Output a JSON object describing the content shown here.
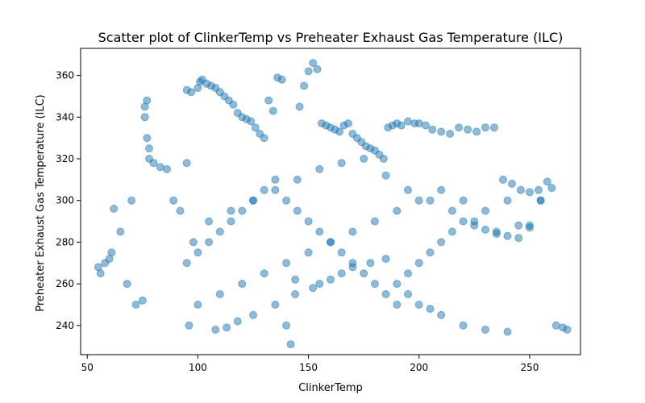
{
  "chart_data": {
    "type": "scatter",
    "title": "Scatter plot of ClinkerTemp vs Preheater Exhaust Gas Temperature (ILC)",
    "xlabel": "ClinkerTemp",
    "ylabel": "Preheater Exhaust Gas Temperature (ILC)",
    "xlim": [
      47,
      273
    ],
    "ylim": [
      226,
      373
    ],
    "xticks": [
      50,
      100,
      150,
      200,
      250
    ],
    "yticks": [
      240,
      260,
      280,
      300,
      320,
      340,
      360
    ],
    "grid": false,
    "marker_color": "#1f77b4",
    "marker_alpha": 0.5,
    "series": [
      {
        "values_note_x_y_pairs": "sampled representative points",
        "x": [
          55,
          56,
          58,
          60,
          61,
          62,
          65,
          68,
          70,
          72,
          75,
          76,
          76,
          77,
          77,
          78,
          78,
          80,
          83,
          86,
          89,
          92,
          95,
          95,
          97,
          98,
          100,
          101,
          102,
          104,
          106,
          108,
          110,
          112,
          114,
          116,
          118,
          120,
          122,
          124,
          126,
          128,
          130,
          132,
          134,
          136,
          138,
          140,
          142,
          144,
          146,
          148,
          150,
          152,
          154,
          156,
          158,
          160,
          162,
          164,
          166,
          168,
          170,
          172,
          174,
          176,
          178,
          180,
          182,
          184,
          186,
          188,
          190,
          192,
          195,
          198,
          200,
          203,
          206,
          210,
          214,
          218,
          222,
          226,
          230,
          234,
          238,
          242,
          246,
          250,
          254,
          258,
          262,
          265,
          267,
          96,
          108,
          113,
          118,
          125,
          135,
          144,
          152,
          155,
          160,
          165,
          170,
          178,
          185,
          190,
          195,
          200,
          205,
          210,
          220,
          230,
          240,
          95,
          100,
          105,
          110,
          115,
          120,
          125,
          130,
          135,
          140,
          145,
          150,
          155,
          160,
          165,
          170,
          175,
          180,
          185,
          190,
          195,
          200,
          205,
          210,
          215,
          220,
          225,
          230,
          235,
          240,
          245,
          250,
          255,
          260,
          100,
          110,
          120,
          130,
          140,
          150,
          160,
          170,
          180,
          190,
          200,
          210,
          220,
          230,
          240,
          250,
          105,
          115,
          125,
          135,
          145,
          155,
          165,
          175,
          185,
          195,
          205,
          215,
          225,
          235,
          245,
          255
        ],
        "y": [
          268,
          265,
          270,
          272,
          275,
          296,
          285,
          260,
          300,
          250,
          252,
          340,
          345,
          348,
          330,
          325,
          320,
          318,
          316,
          315,
          300,
          295,
          318,
          353,
          352,
          280,
          354,
          357,
          358,
          356,
          355,
          354,
          352,
          350,
          348,
          346,
          342,
          340,
          339,
          338,
          335,
          332,
          330,
          348,
          343,
          359,
          358,
          240,
          231,
          262,
          345,
          355,
          362,
          366,
          363,
          337,
          336,
          335,
          334,
          333,
          336,
          337,
          332,
          330,
          328,
          326,
          325,
          324,
          322,
          320,
          335,
          336,
          337,
          336,
          338,
          337,
          337,
          336,
          334,
          333,
          332,
          335,
          334,
          333,
          335,
          335,
          310,
          308,
          305,
          304,
          305,
          309,
          240,
          239,
          238,
          240,
          238,
          239,
          242,
          245,
          250,
          255,
          258,
          260,
          262,
          265,
          268,
          270,
          272,
          260,
          255,
          250,
          248,
          245,
          240,
          238,
          237,
          270,
          275,
          280,
          285,
          290,
          295,
          300,
          305,
          310,
          300,
          295,
          290,
          285,
          280,
          275,
          270,
          265,
          260,
          255,
          250,
          265,
          270,
          275,
          280,
          285,
          290,
          288,
          286,
          284,
          283,
          282,
          288,
          300,
          306,
          250,
          255,
          260,
          265,
          270,
          275,
          280,
          285,
          290,
          295,
          300,
          305,
          300,
          295,
          300,
          287,
          290,
          295,
          300,
          305,
          310,
          315,
          318,
          320,
          312,
          305,
          300,
          295,
          290,
          285,
          288,
          300
        ]
      }
    ]
  }
}
